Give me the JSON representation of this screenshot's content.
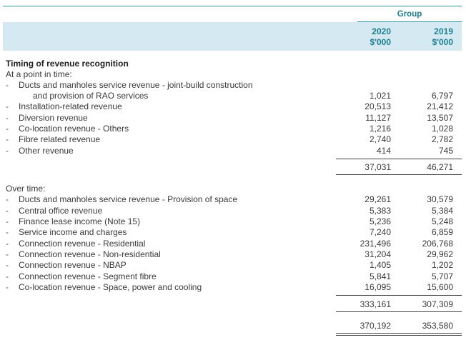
{
  "header": {
    "group": "Group",
    "col1": {
      "year": "2020",
      "unit": "$'000"
    },
    "col2": {
      "year": "2019",
      "unit": "$'000"
    }
  },
  "section_title": "Timing of revenue recognition",
  "point_in_time": {
    "label": "At a point in time:",
    "rows": [
      {
        "label": "Ducts and manholes service revenue - joint-build construction",
        "label2": "and provision of RAO services",
        "v2020": "1,021",
        "v2019": "6,797"
      },
      {
        "label": "Installation-related revenue",
        "v2020": "20,513",
        "v2019": "21,412"
      },
      {
        "label": "Diversion revenue",
        "v2020": "11,127",
        "v2019": "13,507"
      },
      {
        "label": "Co-location revenue - Others",
        "v2020": "1,216",
        "v2019": "1,028"
      },
      {
        "label": "Fibre related revenue",
        "v2020": "2,740",
        "v2019": "2,782"
      },
      {
        "label": "Other revenue",
        "v2020": "414",
        "v2019": "745"
      }
    ],
    "subtotal": {
      "v2020": "37,031",
      "v2019": "46,271"
    }
  },
  "over_time": {
    "label": "Over time:",
    "rows": [
      {
        "label": "Ducts and manholes service revenue - Provision of space",
        "v2020": "29,261",
        "v2019": "30,579"
      },
      {
        "label": "Central office revenue",
        "v2020": "5,383",
        "v2019": "5,384"
      },
      {
        "label": "Finance lease income (Note 15)",
        "v2020": "5,236",
        "v2019": "5,248"
      },
      {
        "label": "Service income and charges",
        "v2020": "7,240",
        "v2019": "6,859"
      },
      {
        "label": "Connection revenue - Residential",
        "v2020": "231,496",
        "v2019": "206,768"
      },
      {
        "label": "Connection revenue - Non-residential",
        "v2020": "31,204",
        "v2019": "29,962"
      },
      {
        "label": "Connection revenue - NBAP",
        "v2020": "1,405",
        "v2019": "1,202"
      },
      {
        "label": "Connection revenue - Segment fibre",
        "v2020": "5,841",
        "v2019": "5,707"
      },
      {
        "label": "Co-location revenue - Space, power and cooling",
        "v2020": "16,095",
        "v2019": "15,600"
      }
    ],
    "subtotal": {
      "v2020": "333,161",
      "v2019": "307,309"
    }
  },
  "total": {
    "v2020": "370,192",
    "v2019": "353,580"
  }
}
